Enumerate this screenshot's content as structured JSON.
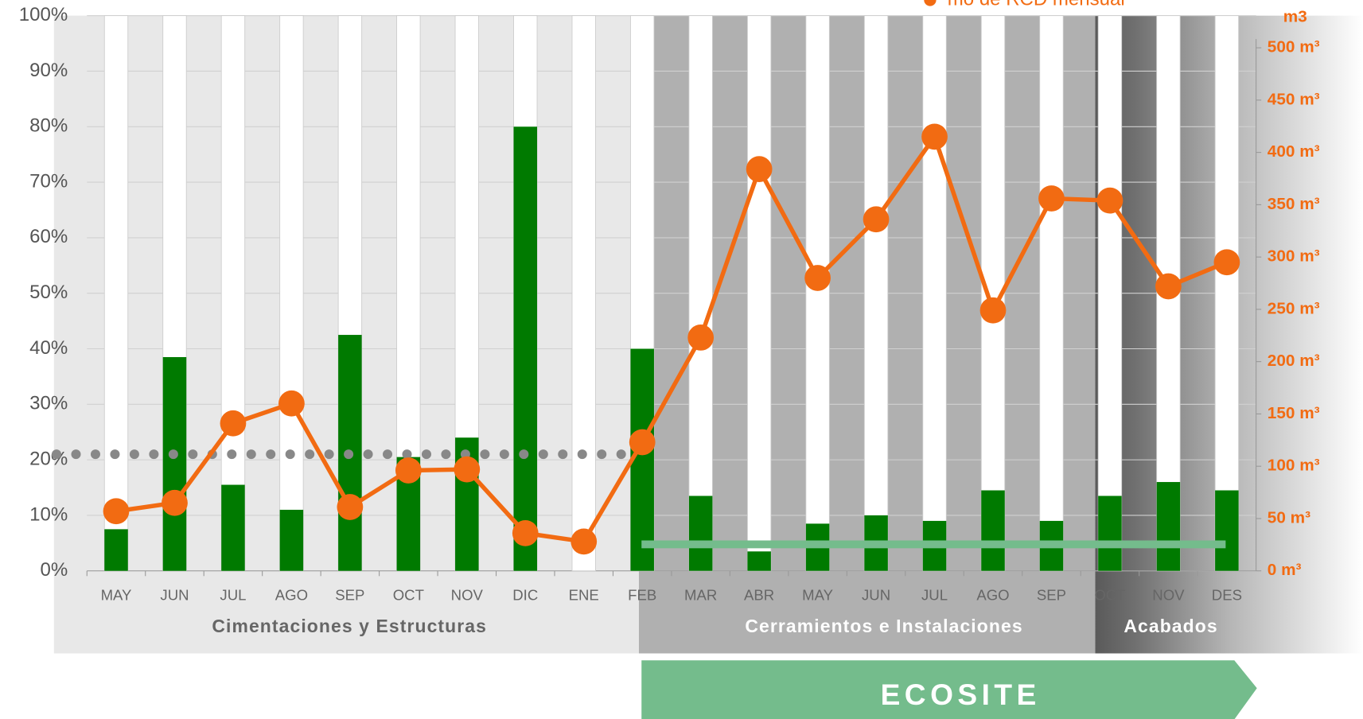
{
  "chart_data": {
    "type": "bar-line",
    "categories": [
      "MAY",
      "JUN",
      "JUL",
      "AGO",
      "SEP",
      "OCT",
      "NOV",
      "DIC",
      "ENE",
      "FEB",
      "MAR",
      "ABR",
      "MAY",
      "JUN",
      "JUL",
      "AGO",
      "SEP",
      "OCT",
      "NOV",
      "DES"
    ],
    "series": [
      {
        "type": "bar",
        "color": "#007a00",
        "values": [
          7.5,
          38.5,
          15.5,
          11,
          42.5,
          20.5,
          24,
          80,
          0,
          40,
          13.5,
          3.5,
          8.5,
          10,
          9,
          14.5,
          9,
          13.5,
          16,
          14.5
        ]
      },
      {
        "type": "line",
        "axis": "y2",
        "name": "mo de RCD mensual",
        "color": "#f26b12",
        "values": [
          57,
          65,
          141,
          160,
          61,
          96,
          97,
          36,
          28,
          123,
          223,
          384,
          280,
          336,
          415,
          249,
          356,
          354,
          272,
          295
        ]
      }
    ],
    "reference_line": {
      "value": 21,
      "color": "#888888"
    },
    "ylim": [
      0,
      100
    ],
    "yticks": [
      {
        "value": 0,
        "label": "0%"
      },
      {
        "value": 10,
        "label": "10%"
      },
      {
        "value": 20,
        "label": "20%"
      },
      {
        "value": 30,
        "label": "30%"
      },
      {
        "value": 40,
        "label": "40%"
      },
      {
        "value": 50,
        "label": "50%"
      },
      {
        "value": 60,
        "label": "60%"
      },
      {
        "value": 70,
        "label": "70%"
      },
      {
        "value": 80,
        "label": "80%"
      },
      {
        "value": 90,
        "label": "90%"
      },
      {
        "value": 100,
        "label": "100%"
      }
    ],
    "y2_title": "m3",
    "y2lim": [
      0,
      500
    ],
    "y2ticks": [
      {
        "value": 0,
        "label": "0 m³"
      },
      {
        "value": 50,
        "label": "50 m³"
      },
      {
        "value": 100,
        "label": "100 m³"
      },
      {
        "value": 150,
        "label": "150 m³"
      },
      {
        "value": 200,
        "label": "200 m³"
      },
      {
        "value": 250,
        "label": "250 m³"
      },
      {
        "value": 300,
        "label": "300 m³"
      },
      {
        "value": 350,
        "label": "350 m³"
      },
      {
        "value": 400,
        "label": "400 m³"
      },
      {
        "value": 450,
        "label": "450 m³"
      },
      {
        "value": 500,
        "label": "500 m³"
      }
    ],
    "phases": [
      "Cimentaciones y Estructuras",
      "Cerramientos e Instalaciones",
      "Acabados"
    ],
    "banner": "ECOSITE"
  }
}
